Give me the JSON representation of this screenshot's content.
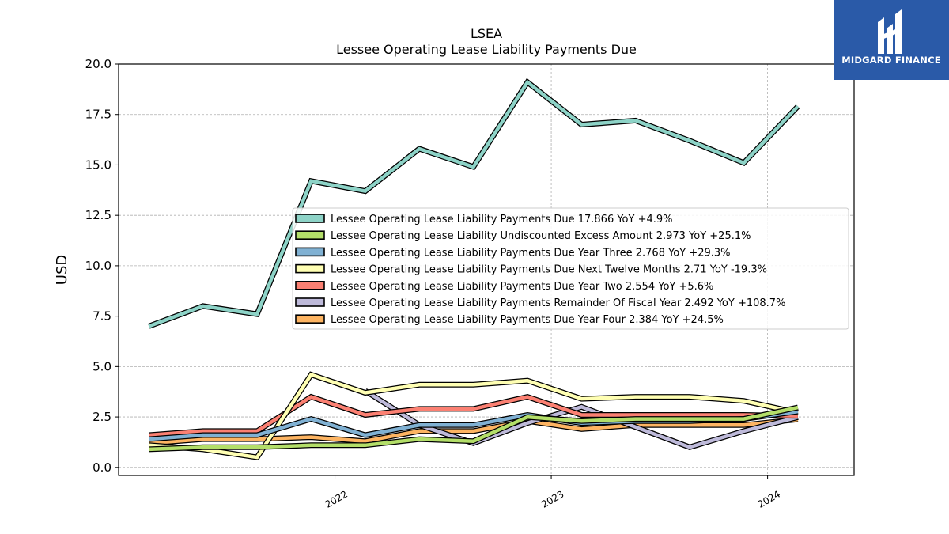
{
  "logo": {
    "text": "MIDGARD FINANCE"
  },
  "chart_data": {
    "type": "line",
    "title": "LSEA",
    "subtitle": "Lessee Operating Lease Liability Payments Due",
    "ylabel": "USD",
    "xlabel": "",
    "ylim": [
      -0.4,
      20.0
    ],
    "xlim": [
      2021.0,
      2024.4
    ],
    "yticks": [
      0.0,
      2.5,
      5.0,
      7.5,
      10.0,
      12.5,
      15.0,
      17.5,
      20.0
    ],
    "ytick_labels": [
      "0.0",
      "2.5",
      "5.0",
      "7.5",
      "10.0",
      "12.5",
      "15.0",
      "17.5",
      "20.0"
    ],
    "xticks": [
      2022.0,
      2023.0,
      2024.0
    ],
    "xtick_labels": [
      "2022",
      "2023",
      "2024"
    ],
    "grid": true,
    "legend_position": "center-right",
    "x": [
      2021.14,
      2021.39,
      2021.64,
      2021.89,
      2022.14,
      2022.39,
      2022.64,
      2022.89,
      2023.14,
      2023.39,
      2023.64,
      2023.89,
      2024.14
    ],
    "series": [
      {
        "name": "Lessee Operating Lease Liability Payments Due",
        "legend": "Lessee Operating Lease Liability Payments Due  17.866 YoY +4.9%",
        "color": "#8dd3c7",
        "values": [
          7.0,
          8.0,
          7.6,
          14.2,
          13.7,
          15.8,
          14.9,
          19.1,
          17.0,
          17.2,
          16.2,
          15.1,
          17.9
        ]
      },
      {
        "name": "Lessee Operating Lease Liability Undiscounted Excess Amount",
        "legend": "Lessee Operating Lease Liability Undiscounted Excess Amount  2.973 YoY +25.1%",
        "color": "#b3de69",
        "values": [
          0.9,
          1.0,
          1.0,
          1.1,
          1.1,
          1.4,
          1.3,
          2.5,
          2.3,
          2.4,
          2.4,
          2.4,
          2.97
        ]
      },
      {
        "name": "Lessee Operating Lease Liability Payments Due Year Three",
        "legend": "Lessee Operating Lease Liability Payments Due Year Three  2.768 YoY +29.3%",
        "color": "#80b1d3",
        "values": [
          1.4,
          1.6,
          1.6,
          2.4,
          1.6,
          2.1,
          2.1,
          2.6,
          2.2,
          2.3,
          2.3,
          2.4,
          2.77
        ]
      },
      {
        "name": "Lessee Operating Lease Liability Payments Due Next Twelve Months",
        "legend": "Lessee Operating Lease Liability Payments Due Next Twelve Months  2.71 YoY -19.3%",
        "color": "#ffffb3",
        "values": [
          1.1,
          0.9,
          0.5,
          4.6,
          3.7,
          4.1,
          4.1,
          4.3,
          3.4,
          3.5,
          3.5,
          3.3,
          2.71
        ]
      },
      {
        "name": "Lessee Operating Lease Liability Payments Due Year Two",
        "legend": "Lessee Operating Lease Liability Payments Due Year Two  2.554 YoY +5.6%",
        "color": "#fb8072",
        "values": [
          1.6,
          1.8,
          1.8,
          3.5,
          2.6,
          2.9,
          2.9,
          3.5,
          2.6,
          2.6,
          2.6,
          2.6,
          2.55
        ]
      },
      {
        "name": "Lessee Operating Lease Liability Payments Remainder Of Fiscal Year",
        "legend": "Lessee Operating Lease Liability Payments Remainder Of Fiscal Year  2.492 YoY +108.7%",
        "color": "#bebada",
        "values": [
          null,
          null,
          null,
          null,
          3.8,
          2.1,
          1.2,
          2.2,
          3.0,
          2.0,
          1.0,
          1.8,
          2.49
        ]
      },
      {
        "name": "Lessee Operating Lease Liability Payments Due Year Four",
        "legend": "Lessee Operating Lease Liability Payments Due Year Four  2.384 YoY +24.5%",
        "color": "#fdb462",
        "values": [
          1.2,
          1.4,
          1.4,
          1.5,
          1.3,
          1.8,
          1.8,
          2.3,
          1.9,
          2.1,
          2.1,
          2.1,
          2.38
        ]
      }
    ]
  }
}
